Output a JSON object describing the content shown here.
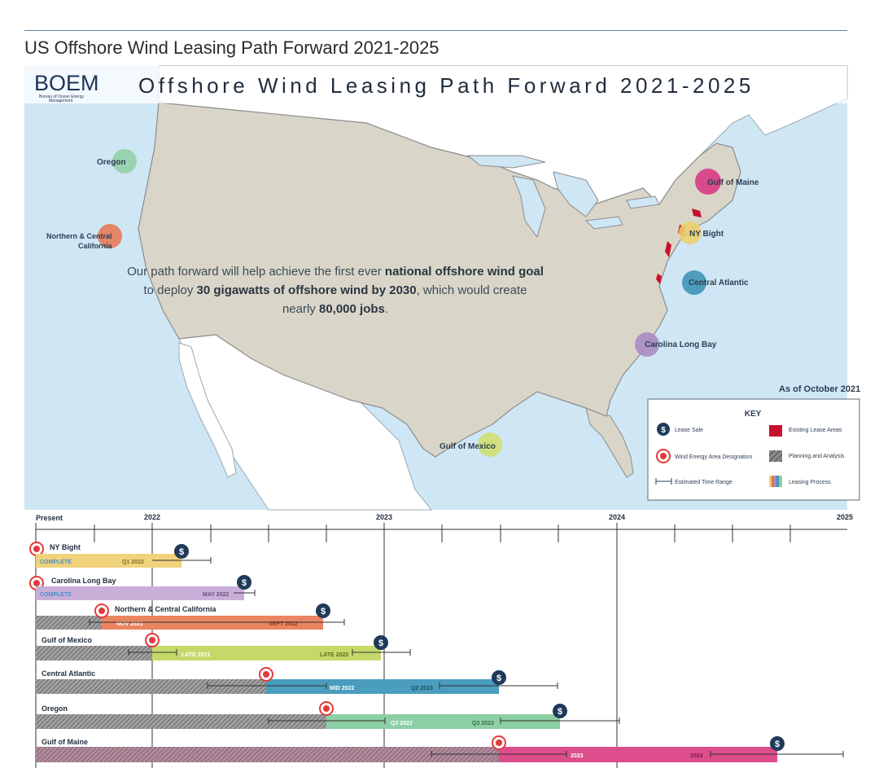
{
  "page_title": "US Offshore Wind Leasing Path Forward 2021-2025",
  "map": {
    "logo_text": "BOEM",
    "logo_subtitle_line1": "Bureau of Ocean Energy",
    "logo_subtitle_line2": "Management",
    "banner_title": "Offshore Wind Leasing Path Forward 2021-2025",
    "message_line1_a": "Our path forward will help achieve the first ever ",
    "message_line1_b": "national offshore wind goal",
    "message_line2_a": "to deploy ",
    "message_line2_b": "30 gigawatts of offshore wind by 2030",
    "message_line2_c": ", which would create",
    "message_line3_a": "nearly ",
    "message_line3_b": "80,000 jobs",
    "message_line3_c": ".",
    "as_of": "As of October 2021",
    "regions": [
      {
        "label": "Oregon",
        "color": "#8fcfa3"
      },
      {
        "label": "Northern & Central",
        "label2": "California",
        "color": "#e8734f"
      },
      {
        "label": "Gulf of Maine",
        "color": "#d63c86"
      },
      {
        "label": "NY Bight",
        "color": "#ecd06d"
      },
      {
        "label": "Central Atlantic",
        "color": "#3f93b6"
      },
      {
        "label": "Carolina Long Bay",
        "color": "#a98cc4"
      },
      {
        "label": "Gulf of Mexico",
        "color": "#cfdf72"
      }
    ],
    "key": {
      "title": "KEY",
      "lease_sale": "Lease Sale",
      "existing_lease_areas": "Existing Lease Areas",
      "wea_designation": "Wind Energy Area Designation",
      "planning": "Planning and Analysis",
      "time_range": "Estimated Time Range",
      "leasing_process": "Leasing Process"
    }
  },
  "timeline": {
    "present_label": "Present",
    "year_labels": [
      "2022",
      "2023",
      "2024",
      "2025"
    ],
    "rows": [
      {
        "name": "NY Bight",
        "color": "#f1d27c",
        "status": "COMPLETE",
        "sale_label": "Q1 2022"
      },
      {
        "name": "Carolina Long Bay",
        "color": "#c9afd8",
        "status": "COMPLETE",
        "sale_label": "MAY 2022"
      },
      {
        "name": "Northern & Central California",
        "color": "#ea8461",
        "wea_label": "NOV 2021",
        "sale_label": "SEPT 2022"
      },
      {
        "name": "Gulf of Mexico",
        "color": "#c4d96a",
        "wea_label": "LATE 2021",
        "sale_label": "LATE 2022"
      },
      {
        "name": "Central Atlantic",
        "color": "#4a9dbd",
        "wea_label": "MID 2022",
        "sale_label": "Q2 2023"
      },
      {
        "name": "Oregon",
        "color": "#8ccfa4",
        "wea_label": "Q3 2022",
        "sale_label": "Q3 2023"
      },
      {
        "name": "Gulf of Maine",
        "color": "#dd4d8b",
        "wea_label": "2023",
        "sale_label": "2024"
      }
    ]
  }
}
